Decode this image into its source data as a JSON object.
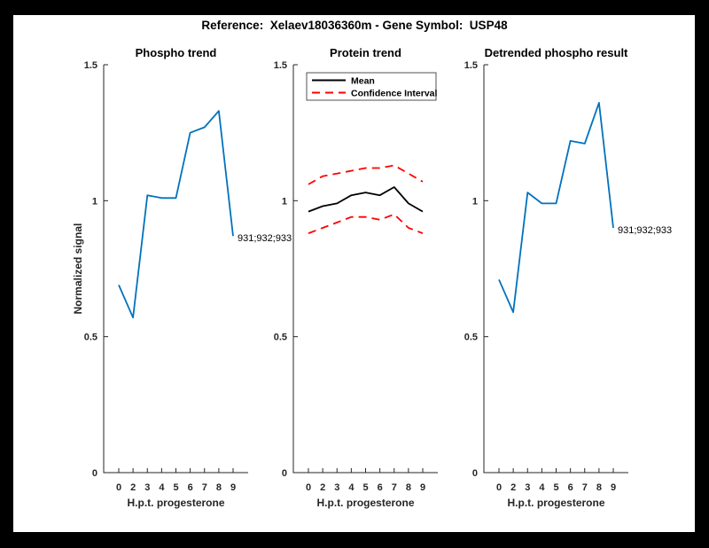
{
  "figure": {
    "title": "Reference:  Xelaev18036360m - Gene Symbol:  USP48",
    "frame_color": "#000000",
    "paper_color": "#ffffff"
  },
  "colors": {
    "blue": "#0072BD",
    "red": "#ff0000",
    "black": "#000000",
    "axis": "#262626"
  },
  "chart_data": [
    {
      "type": "line",
      "title": "Phospho trend",
      "xlabel": "H.p.t. progesterone",
      "ylabel": "Normalized signal",
      "categories": [
        "0",
        "2",
        "3",
        "4",
        "5",
        "6",
        "7",
        "8",
        "9"
      ],
      "ylim": [
        0,
        1.5
      ],
      "yticks": [
        0,
        0.5,
        1,
        1.5
      ],
      "ytick_labels": [
        "0",
        "0.5",
        "1",
        "1.5"
      ],
      "grid": false,
      "series": [
        {
          "name": "phospho-signal",
          "color": "blue",
          "style": "solid",
          "values": [
            0.69,
            0.57,
            1.02,
            1.01,
            1.01,
            1.25,
            1.27,
            1.33,
            0.87
          ]
        }
      ],
      "annotation": "931;932;933",
      "legend": null
    },
    {
      "type": "line",
      "title": "Protein trend",
      "xlabel": "H.p.t. progesterone",
      "ylabel": null,
      "categories": [
        "0",
        "2",
        "3",
        "4",
        "5",
        "6",
        "7",
        "8",
        "9"
      ],
      "ylim": [
        0,
        1.5
      ],
      "yticks": [
        0,
        0.5,
        1,
        1.5
      ],
      "ytick_labels": [
        "0",
        "0.5",
        "1",
        "1.5"
      ],
      "grid": false,
      "series": [
        {
          "name": "mean",
          "color": "black",
          "style": "solid",
          "values": [
            0.96,
            0.98,
            0.99,
            1.02,
            1.03,
            1.02,
            1.05,
            0.99,
            0.96
          ]
        },
        {
          "name": "ci-upper",
          "color": "red",
          "style": "dashed",
          "values": [
            1.06,
            1.09,
            1.1,
            1.11,
            1.12,
            1.12,
            1.13,
            1.1,
            1.07
          ]
        },
        {
          "name": "ci-lower",
          "color": "red",
          "style": "dashed",
          "values": [
            0.88,
            0.9,
            0.92,
            0.94,
            0.94,
            0.93,
            0.95,
            0.9,
            0.88
          ]
        }
      ],
      "annotation": null,
      "legend": {
        "position": "northwest",
        "entries": [
          {
            "label": "Mean",
            "color": "black",
            "style": "solid"
          },
          {
            "label": "Confidence Interval",
            "color": "red",
            "style": "dashed"
          }
        ]
      }
    },
    {
      "type": "line",
      "title": "Detrended phospho result",
      "xlabel": "H.p.t. progesterone",
      "ylabel": null,
      "categories": [
        "0",
        "2",
        "3",
        "4",
        "5",
        "6",
        "7",
        "8",
        "9"
      ],
      "ylim": [
        0,
        1.5
      ],
      "yticks": [
        0,
        0.5,
        1,
        1.5
      ],
      "ytick_labels": [
        "0",
        "0.5",
        "1",
        "1.5"
      ],
      "grid": false,
      "series": [
        {
          "name": "detrended-signal",
          "color": "blue",
          "style": "solid",
          "values": [
            0.71,
            0.59,
            1.03,
            0.99,
            0.99,
            1.22,
            1.21,
            1.36,
            0.9
          ]
        }
      ],
      "annotation": "931;932;933",
      "legend": null
    }
  ]
}
